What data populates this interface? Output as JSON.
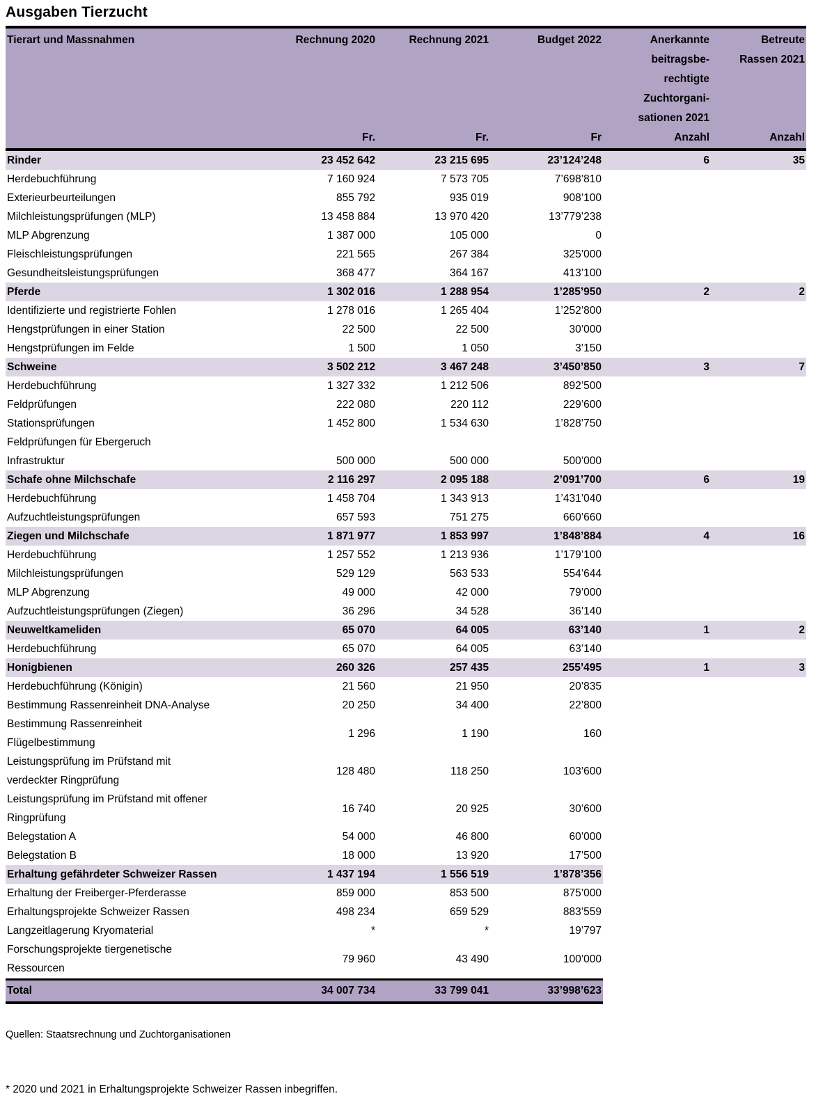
{
  "title": "Ausgaben Tierzucht",
  "colors": {
    "header_band": "#b0a3c4",
    "section_band": "#dcd6e4",
    "border": "#000000"
  },
  "table": {
    "columns": [
      {
        "label": [
          "Tierart und Massnahmen"
        ],
        "unit": ""
      },
      {
        "label": [
          "Rechnung 2020"
        ],
        "unit": "Fr."
      },
      {
        "label": [
          "Rechnung 2021"
        ],
        "unit": "Fr."
      },
      {
        "label": [
          "Budget 2022"
        ],
        "unit": "Fr"
      },
      {
        "label": [
          "Anerkannte",
          "beitragsbe-",
          "rechtigte",
          "Zuchtorgani-",
          "sationen 2021"
        ],
        "unit": "Anzahl"
      },
      {
        "label": [
          "Betreute",
          "Rassen 2021"
        ],
        "unit": "Anzahl"
      }
    ],
    "rows": [
      {
        "type": "section",
        "label": "Rinder",
        "values": [
          "23 452 642",
          "23 215 695",
          "23’124’248",
          "6",
          "35"
        ]
      },
      {
        "type": "item",
        "label": "Herdebuchführung",
        "values": [
          "7 160 924",
          "7 573 705",
          "7’698’810",
          "",
          ""
        ]
      },
      {
        "type": "item",
        "label": "Exterieurbeurteilungen",
        "values": [
          "855 792",
          "935 019",
          "908’100",
          "",
          ""
        ]
      },
      {
        "type": "item",
        "label": "Milchleistungsprüfungen (MLP)",
        "values": [
          "13 458 884",
          "13 970 420",
          "13’779’238",
          "",
          ""
        ]
      },
      {
        "type": "item",
        "label": "MLP Abgrenzung",
        "values": [
          "1 387 000",
          "105 000",
          "0",
          "",
          ""
        ]
      },
      {
        "type": "item",
        "label": "Fleischleistungsprüfungen",
        "values": [
          "221 565",
          "267 384",
          "325’000",
          "",
          ""
        ]
      },
      {
        "type": "item",
        "label": "Gesundheitsleistungsprüfungen",
        "values": [
          "368 477",
          "364 167",
          "413’100",
          "",
          ""
        ]
      },
      {
        "type": "section",
        "label": "Pferde",
        "values": [
          "1 302 016",
          "1 288 954",
          "1’285’950",
          "2",
          "2"
        ]
      },
      {
        "type": "item",
        "label": "Identifizierte und registrierte Fohlen",
        "values": [
          "1 278 016",
          "1 265 404",
          "1’252’800",
          "",
          ""
        ]
      },
      {
        "type": "item",
        "label": "Hengstprüfungen in einer Station",
        "values": [
          "22 500",
          "22 500",
          "30’000",
          "",
          ""
        ]
      },
      {
        "type": "item",
        "label": "Hengstprüfungen im Felde",
        "values": [
          "1 500",
          "1 050",
          "3’150",
          "",
          ""
        ]
      },
      {
        "type": "section",
        "label": "Schweine",
        "values": [
          "3 502 212",
          "3 467 248",
          "3’450’850",
          "3",
          "7"
        ]
      },
      {
        "type": "item",
        "label": "Herdebuchführung",
        "values": [
          "1 327 332",
          "1 212 506",
          "892’500",
          "",
          ""
        ]
      },
      {
        "type": "item",
        "label": "Feldprüfungen",
        "values": [
          "222 080",
          "220 112",
          "229’600",
          "",
          ""
        ]
      },
      {
        "type": "item",
        "label": "Stationsprüfungen",
        "values": [
          "1 452 800",
          "1 534 630",
          "1’828’750",
          "",
          ""
        ]
      },
      {
        "type": "item",
        "label": "Feldprüfungen für Ebergeruch",
        "values": [
          "",
          "",
          "",
          "",
          ""
        ]
      },
      {
        "type": "item",
        "label": "Infrastruktur",
        "values": [
          "500 000",
          "500 000",
          "500’000",
          "",
          ""
        ]
      },
      {
        "type": "section",
        "label": "Schafe ohne Milchschafe",
        "values": [
          "2 116 297",
          "2 095 188",
          "2’091’700",
          "6",
          "19"
        ]
      },
      {
        "type": "item",
        "label": "Herdebuchführung",
        "values": [
          "1 458 704",
          "1 343 913",
          "1’431’040",
          "",
          ""
        ]
      },
      {
        "type": "item",
        "label": "Aufzuchtleistungsprüfungen",
        "values": [
          "657 593",
          "751 275",
          "660’660",
          "",
          ""
        ]
      },
      {
        "type": "section",
        "label": "Ziegen und Milchschafe",
        "values": [
          "1 871 977",
          "1 853 997",
          "1’848’884",
          "4",
          "16"
        ]
      },
      {
        "type": "item",
        "label": "Herdebuchführung",
        "values": [
          "1 257 552",
          "1 213 936",
          "1’179’100",
          "",
          ""
        ]
      },
      {
        "type": "item",
        "label": "Milchleistungsprüfungen",
        "values": [
          "529 129",
          "563 533",
          "554’644",
          "",
          ""
        ]
      },
      {
        "type": "item",
        "label": "MLP Abgrenzung",
        "values": [
          "49 000",
          "42 000",
          "79’000",
          "",
          ""
        ]
      },
      {
        "type": "item",
        "label": "Aufzuchtleistungsprüfungen (Ziegen)",
        "values": [
          "36 296",
          "34 528",
          "36’140",
          "",
          ""
        ]
      },
      {
        "type": "section",
        "label": "Neuweltkameliden",
        "values": [
          "65 070",
          "64 005",
          "63’140",
          "1",
          "2"
        ]
      },
      {
        "type": "item",
        "label": "Herdebuchführung",
        "values": [
          "65 070",
          "64 005",
          "63’140",
          "",
          ""
        ]
      },
      {
        "type": "section",
        "label": "Honigbienen",
        "values": [
          "260 326",
          "257 435",
          "255’495",
          "1",
          "3"
        ]
      },
      {
        "type": "item",
        "label": "Herdebuchführung (Königin)",
        "values": [
          "21 560",
          "21 950",
          "20’835",
          "",
          ""
        ]
      },
      {
        "type": "item",
        "label": "Bestimmung Rassenreinheit DNA-Analyse",
        "values": [
          "20 250",
          "34 400",
          "22’800",
          "",
          ""
        ]
      },
      {
        "type": "item",
        "label": [
          "Bestimmung Rassenreinheit",
          "Flügelbestimmung"
        ],
        "values": [
          "1 296",
          "1 190",
          "160",
          "",
          ""
        ]
      },
      {
        "type": "item",
        "label": [
          "Leistungsprüfung im Prüfstand mit",
          "verdeckter Ringprüfung"
        ],
        "values": [
          "128 480",
          "118 250",
          "103’600",
          "",
          ""
        ]
      },
      {
        "type": "item",
        "label": [
          "Leistungsprüfung im Prüfstand mit offener",
          "Ringprüfung"
        ],
        "values": [
          "16 740",
          "20 925",
          "30’600",
          "",
          ""
        ]
      },
      {
        "type": "item",
        "label": "Belegstation A",
        "values": [
          "54 000",
          "46 800",
          "60’000",
          "",
          ""
        ]
      },
      {
        "type": "item",
        "label": "Belegstation B",
        "values": [
          "18 000",
          "13 920",
          "17’500",
          "",
          ""
        ]
      },
      {
        "type": "section",
        "band": "partial",
        "label": "Erhaltung gefährdeter Schweizer Rassen",
        "values": [
          "1 437 194",
          "1 556 519",
          "1’878’356",
          "",
          ""
        ]
      },
      {
        "type": "item",
        "label": "Erhaltung der Freiberger-Pferderasse",
        "values": [
          "859 000",
          "853 500",
          "875’000",
          "",
          ""
        ]
      },
      {
        "type": "item",
        "label": "Erhaltungsprojekte Schweizer Rassen",
        "values": [
          "498 234",
          "659 529",
          "883’559",
          "",
          ""
        ]
      },
      {
        "type": "item",
        "label": "Langzeitlagerung Kryomaterial",
        "values": [
          "*",
          "*",
          "19’797",
          "",
          ""
        ]
      },
      {
        "type": "item",
        "label": [
          "Forschungsprojekte tiergenetische",
          "Ressourcen"
        ],
        "values": [
          "79 960",
          "43 490",
          "100’000",
          "",
          ""
        ]
      }
    ],
    "total": {
      "label": "Total",
      "values": [
        "34 007 734",
        "33 799 041",
        "33’998’623",
        "",
        ""
      ]
    }
  },
  "footnotes": {
    "sources": "Quellen: Staatsrechnung und Zuchtorganisationen",
    "asterisk": "* 2020 und 2021 in Erhaltungsprojekte Schweizer Rassen inbegriffen."
  }
}
